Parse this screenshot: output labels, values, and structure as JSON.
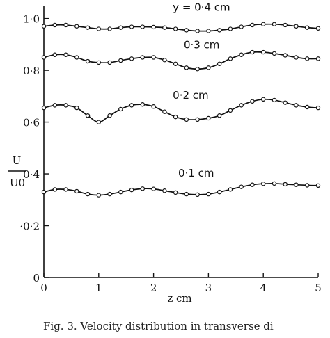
{
  "chart_data": {
    "type": "line",
    "title": "",
    "xlabel": "z   cm",
    "ylabel_numerator": "U",
    "ylabel_denominator": "U0",
    "xlim": [
      0,
      5
    ],
    "ylim": [
      0,
      1.05
    ],
    "x_ticks": [
      {
        "value": 0,
        "label": "0"
      },
      {
        "value": 1,
        "label": "1"
      },
      {
        "value": 2,
        "label": "2"
      },
      {
        "value": 3,
        "label": "3"
      },
      {
        "value": 4,
        "label": "4"
      },
      {
        "value": 5,
        "label": "5"
      }
    ],
    "y_ticks": [
      {
        "value": 0,
        "label": "0"
      },
      {
        "value": 0.2,
        "label": "·0·2"
      },
      {
        "value": 0.4,
        "label": "0·4"
      },
      {
        "value": 0.6,
        "label": "0·6"
      },
      {
        "value": 0.8,
        "label": "0·8"
      },
      {
        "value": 1.0,
        "label": "1·0"
      }
    ],
    "grid": false,
    "caption": "Fig. 3.  Velocity distribution in transverse di",
    "series": [
      {
        "name": "y = 0·4 cm",
        "label_pos": [
          2.35,
          1.03
        ],
        "x": [
          0,
          0.2,
          0.4,
          0.6,
          0.8,
          1.0,
          1.2,
          1.4,
          1.6,
          1.8,
          2.0,
          2.2,
          2.4,
          2.6,
          2.8,
          3.0,
          3.2,
          3.4,
          3.6,
          3.8,
          4.0,
          4.2,
          4.4,
          4.6,
          4.8,
          5.0
        ],
        "y": [
          0.97,
          0.975,
          0.975,
          0.97,
          0.965,
          0.96,
          0.96,
          0.965,
          0.968,
          0.968,
          0.967,
          0.965,
          0.96,
          0.955,
          0.952,
          0.952,
          0.955,
          0.96,
          0.968,
          0.975,
          0.978,
          0.978,
          0.975,
          0.97,
          0.965,
          0.962
        ]
      },
      {
        "name": "0·3 cm",
        "label_pos": [
          2.55,
          0.885
        ],
        "x": [
          0,
          0.2,
          0.4,
          0.6,
          0.8,
          1.0,
          1.2,
          1.4,
          1.6,
          1.8,
          2.0,
          2.2,
          2.4,
          2.6,
          2.8,
          3.0,
          3.2,
          3.4,
          3.6,
          3.8,
          4.0,
          4.2,
          4.4,
          4.6,
          4.8,
          5.0
        ],
        "y": [
          0.85,
          0.86,
          0.86,
          0.85,
          0.835,
          0.83,
          0.83,
          0.838,
          0.845,
          0.85,
          0.85,
          0.84,
          0.825,
          0.81,
          0.805,
          0.81,
          0.825,
          0.845,
          0.86,
          0.87,
          0.87,
          0.865,
          0.858,
          0.85,
          0.845,
          0.845
        ]
      },
      {
        "name": "0·2 cm",
        "label_pos": [
          2.35,
          0.69
        ],
        "x": [
          0,
          0.2,
          0.4,
          0.6,
          0.8,
          1.0,
          1.2,
          1.4,
          1.6,
          1.8,
          2.0,
          2.2,
          2.4,
          2.6,
          2.8,
          3.0,
          3.2,
          3.4,
          3.6,
          3.8,
          4.0,
          4.2,
          4.4,
          4.6,
          4.8,
          5.0
        ],
        "y": [
          0.655,
          0.665,
          0.665,
          0.655,
          0.625,
          0.6,
          0.625,
          0.65,
          0.665,
          0.668,
          0.66,
          0.64,
          0.62,
          0.61,
          0.61,
          0.615,
          0.625,
          0.645,
          0.665,
          0.68,
          0.688,
          0.685,
          0.675,
          0.665,
          0.658,
          0.655
        ]
      },
      {
        "name": "0·1 cm",
        "label_pos": [
          2.45,
          0.39
        ],
        "x": [
          0,
          0.2,
          0.4,
          0.6,
          0.8,
          1.0,
          1.2,
          1.4,
          1.6,
          1.8,
          2.0,
          2.2,
          2.4,
          2.6,
          2.8,
          3.0,
          3.2,
          3.4,
          3.6,
          3.8,
          4.0,
          4.2,
          4.4,
          4.6,
          4.8,
          5.0
        ],
        "y": [
          0.33,
          0.34,
          0.34,
          0.333,
          0.322,
          0.318,
          0.322,
          0.33,
          0.338,
          0.343,
          0.342,
          0.335,
          0.328,
          0.322,
          0.32,
          0.322,
          0.33,
          0.34,
          0.35,
          0.358,
          0.362,
          0.363,
          0.36,
          0.358,
          0.356,
          0.355
        ]
      }
    ]
  }
}
